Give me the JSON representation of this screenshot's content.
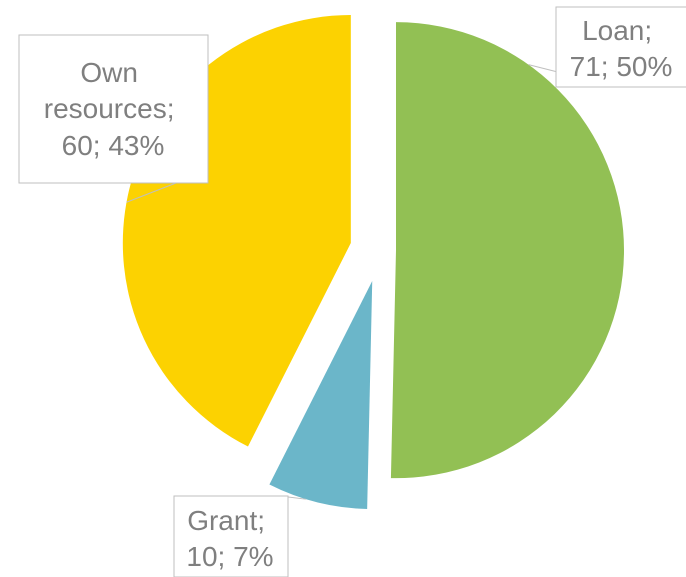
{
  "chart_data": {
    "type": "pie",
    "slices": [
      {
        "label": "Loan",
        "value": 71,
        "percent": "50%",
        "color": "#92c054"
      },
      {
        "label": "Grant",
        "value": 10,
        "percent": "7%",
        "color": "#6bb6c9"
      },
      {
        "label": "Own resources",
        "value": 60,
        "percent": "43%",
        "color": "#fcd201"
      }
    ],
    "data_labels": [
      {
        "lines": [
          "Loan;",
          "71; 50%"
        ]
      },
      {
        "lines": [
          "Grant;",
          "10; 7%"
        ]
      },
      {
        "lines": [
          "Own",
          "resources;",
          "60; 43%"
        ]
      }
    ],
    "title": "",
    "legend": "none",
    "exploded": true
  }
}
